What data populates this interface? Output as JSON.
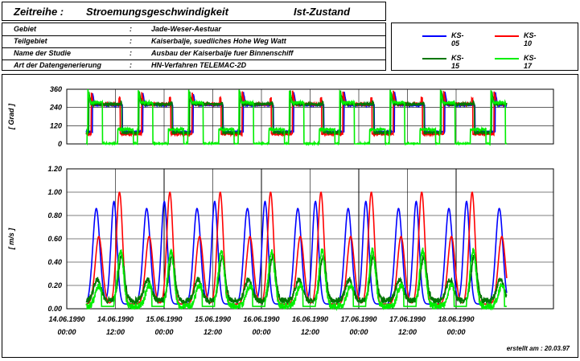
{
  "header": {
    "label": "Zeitreihe :",
    "quantity": "Stroemungsgeschwindigkeit",
    "state": "Ist-Zustand"
  },
  "meta": [
    {
      "key": "Gebiet",
      "sep": ":",
      "value": "Jade-Weser-Aestuar"
    },
    {
      "key": "Teilgebiet",
      "sep": ":",
      "value": "Kaiserbalje, suedliches Hohe Weg Watt"
    },
    {
      "key": "Name der Studie",
      "sep": ":",
      "value": "Ausbau der Kaiserbalje fuer Binnenschiff"
    },
    {
      "key": "Art der Datengenerierung",
      "sep": ":",
      "value": "HN-Verfahren TELEMAC-2D"
    }
  ],
  "credit": "erstellt am :  20.03.97",
  "chart_data": [
    {
      "type": "line",
      "ylabel": "[ Grad ]",
      "ylim": [
        0,
        360
      ],
      "yticks": [
        "0",
        "120",
        "240",
        "360"
      ],
      "xlim": [
        0,
        120
      ],
      "series": [
        {
          "name": "KS-05",
          "color": "#0000ff",
          "shape": "dir",
          "params": {
            "ebb": 255,
            "flood": 80,
            "startEbb": 1.5,
            "flipEbb": 8.9,
            "spike": 0,
            "noise": 4
          }
        },
        {
          "name": "KS-10",
          "color": "#ff0000",
          "shape": "dir",
          "params": {
            "ebb": 262,
            "flood": 65,
            "startEbb": 1.2,
            "flipEbb": 8.4,
            "spike": 40,
            "noise": 6
          }
        },
        {
          "name": "KS-15",
          "color": "#007700",
          "shape": "dir",
          "params": {
            "ebb": 262,
            "flood": 75,
            "startEbb": 0.6,
            "flipEbb": 8.8,
            "spike": 10,
            "noise": 8
          }
        },
        {
          "name": "KS-17",
          "color": "#00ee00",
          "shape": "dir17",
          "params": {
            "ebb": 272,
            "flood": 95,
            "startEbb": 0.4,
            "flipEbb": 7.5,
            "dry0": 4.0,
            "dry1": 7.8,
            "noise": 8
          }
        }
      ]
    },
    {
      "type": "line",
      "ylabel": "[ m/s ]",
      "ylim": [
        0,
        1.2
      ],
      "yticks": [
        "0.00",
        "0.20",
        "0.40",
        "0.60",
        "0.80",
        "1.00",
        "1.20"
      ],
      "xlim": [
        0,
        120
      ],
      "xticks": [
        {
          "x": 0,
          "label": [
            "14.06.1990",
            "00:00"
          ]
        },
        {
          "x": 12,
          "label": [
            "14.06.1990",
            "12:00"
          ]
        },
        {
          "x": 24,
          "label": [
            "15.06.1990",
            "00:00"
          ]
        },
        {
          "x": 36,
          "label": [
            "15.06.1990",
            "12:00"
          ]
        },
        {
          "x": 48,
          "label": [
            "16.06.1990",
            "00:00"
          ]
        },
        {
          "x": 60,
          "label": [
            "16.06.1990",
            "12:00"
          ]
        },
        {
          "x": 72,
          "label": [
            "17.06.1990",
            "00:00"
          ]
        },
        {
          "x": 84,
          "label": [
            "17.06.1990",
            "12:00"
          ]
        },
        {
          "x": 96,
          "label": [
            "18.06.1990",
            "00:00"
          ]
        }
      ],
      "series": [
        {
          "name": "KS-05",
          "color": "#0000ff",
          "shape": "vel",
          "params": {
            "ebbPeak": 0.86,
            "floodPeak": 0.92,
            "ebbAt": 0.2,
            "floodAt": 0.55,
            "min": 0.04
          }
        },
        {
          "name": "KS-10",
          "color": "#ff0000",
          "shape": "vel",
          "params": {
            "ebbPeak": 0.62,
            "floodPeak": 1.0,
            "ebbAt": 0.25,
            "floodAt": 0.66,
            "min": 0.04
          }
        },
        {
          "name": "KS-15",
          "color": "#007700",
          "shape": "vel",
          "params": {
            "ebbPeak": 0.25,
            "floodPeak": 0.45,
            "ebbAt": 0.22,
            "floodAt": 0.7,
            "min": 0.07,
            "noise": 0.05
          }
        },
        {
          "name": "KS-17",
          "color": "#00ee00",
          "shape": "vel17",
          "params": {
            "ebbPeak": 0.2,
            "floodPeak": 0.5,
            "ebbAt": 0.25,
            "floodAt": 0.68,
            "min": 0.02,
            "noise": 0.06
          }
        }
      ],
      "period_hours": 12.42,
      "t_start": 4.8,
      "t_end": 108.5
    }
  ]
}
